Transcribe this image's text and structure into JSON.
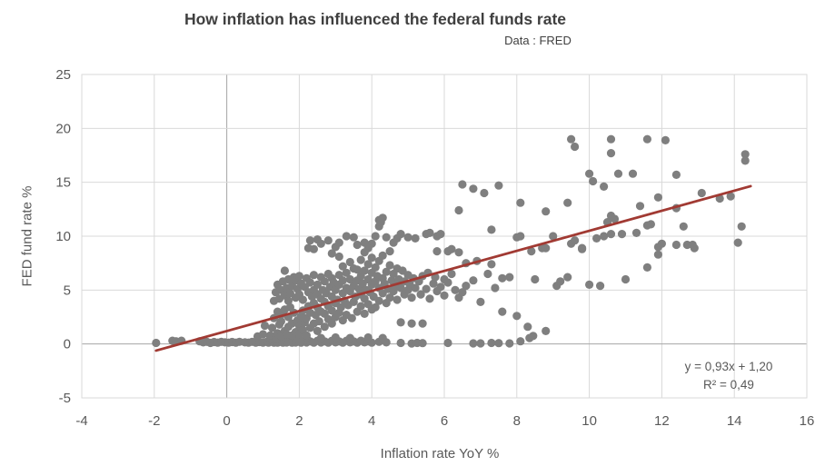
{
  "chart_data": {
    "type": "scatter",
    "title": "How inflation has influenced the federal funds rate",
    "subtitle": "Data : FRED",
    "xlabel": "Inflation rate YoY %",
    "ylabel": "FED fund rate %",
    "xlim": [
      -4,
      16
    ],
    "ylim": [
      -5,
      25
    ],
    "xticks": [
      -4,
      -2,
      0,
      2,
      4,
      6,
      8,
      10,
      12,
      14,
      16
    ],
    "yticks": [
      -5,
      0,
      5,
      10,
      15,
      20,
      25
    ],
    "grid": true,
    "legend": false,
    "marker_color": "#7F7F7F",
    "grid_color": "#D9D9D9",
    "axis_line_color": "#A6A6A6",
    "text_color": "#595959",
    "title_color": "#3F3F3F",
    "trendline": {
      "label_equation": "y = 0,93x + 1,20",
      "label_r2": "R² = 0,49",
      "slope": 0.93,
      "intercept": 1.2,
      "x_start": -1.95,
      "x_end": 14.45,
      "color": "#A13A33"
    },
    "points": [
      [
        -1.95,
        0.1
      ],
      [
        -1.5,
        0.3
      ],
      [
        -1.4,
        0.25
      ],
      [
        -1.25,
        0.3
      ],
      [
        -0.75,
        0.25
      ],
      [
        -0.65,
        0.15
      ],
      [
        -0.55,
        0.2
      ],
      [
        -0.45,
        0.1
      ],
      [
        -0.35,
        0.18
      ],
      [
        -0.25,
        0.12
      ],
      [
        -0.15,
        0.2
      ],
      [
        -0.05,
        0.15
      ],
      [
        0.05,
        0.12
      ],
      [
        0.15,
        0.18
      ],
      [
        0.25,
        0.12
      ],
      [
        0.35,
        0.2
      ],
      [
        0.5,
        0.15
      ],
      [
        0.6,
        0.12
      ],
      [
        0.7,
        0.2
      ],
      [
        0.8,
        0.12
      ],
      [
        0.9,
        0.18
      ],
      [
        1.0,
        0.12
      ],
      [
        1.1,
        0.2
      ],
      [
        1.15,
        0.12
      ],
      [
        1.2,
        0.35
      ],
      [
        1.3,
        0.12
      ],
      [
        1.35,
        0.25
      ],
      [
        1.4,
        0.12
      ],
      [
        1.5,
        0.2
      ],
      [
        1.55,
        0.12
      ],
      [
        1.6,
        0.3
      ],
      [
        1.65,
        0.14
      ],
      [
        1.7,
        0.22
      ],
      [
        1.8,
        0.12
      ],
      [
        1.85,
        0.3
      ],
      [
        1.9,
        0.14
      ],
      [
        2.0,
        0.22
      ],
      [
        2.05,
        0.12
      ],
      [
        2.1,
        0.3
      ],
      [
        2.2,
        0.14
      ],
      [
        2.3,
        0.24
      ],
      [
        2.4,
        0.12
      ],
      [
        2.5,
        0.3
      ],
      [
        2.6,
        0.14
      ],
      [
        2.7,
        0.24
      ],
      [
        2.8,
        0.12
      ],
      [
        2.9,
        0.3
      ],
      [
        3.0,
        0.15
      ],
      [
        3.1,
        0.24
      ],
      [
        3.2,
        0.12
      ],
      [
        3.3,
        0.3
      ],
      [
        3.4,
        0.15
      ],
      [
        3.5,
        0.24
      ],
      [
        3.6,
        0.12
      ],
      [
        3.7,
        0.3
      ],
      [
        3.8,
        0.15
      ],
      [
        3.9,
        0.24
      ],
      [
        4.0,
        0.12
      ],
      [
        4.2,
        0.2
      ],
      [
        4.4,
        0.15
      ],
      [
        4.8,
        0.1
      ],
      [
        5.1,
        0.05
      ],
      [
        5.25,
        0.1
      ],
      [
        5.4,
        0.08
      ],
      [
        6.1,
        0.1
      ],
      [
        6.8,
        0.06
      ],
      [
        7.0,
        0.06
      ],
      [
        7.3,
        0.1
      ],
      [
        7.5,
        0.08
      ],
      [
        7.8,
        0.06
      ],
      [
        8.1,
        0.25
      ],
      [
        8.35,
        0.55
      ],
      [
        8.45,
        0.75
      ],
      [
        0.85,
        0.7
      ],
      [
        1.0,
        0.9
      ],
      [
        1.05,
        1.7
      ],
      [
        1.2,
        0.6
      ],
      [
        1.4,
        0.55
      ],
      [
        1.6,
        0.65
      ],
      [
        1.9,
        0.55
      ],
      [
        2.2,
        0.6
      ],
      [
        2.6,
        0.55
      ],
      [
        3.0,
        0.6
      ],
      [
        3.4,
        0.55
      ],
      [
        3.9,
        0.6
      ],
      [
        4.3,
        0.55
      ],
      [
        4.8,
        2.0
      ],
      [
        5.1,
        1.9
      ],
      [
        5.4,
        1.9
      ],
      [
        1.2,
        0.8
      ],
      [
        1.25,
        1.5
      ],
      [
        1.3,
        2.4
      ],
      [
        1.3,
        4.0
      ],
      [
        1.35,
        0.6
      ],
      [
        1.35,
        4.8
      ],
      [
        1.4,
        1.0
      ],
      [
        1.4,
        3.0
      ],
      [
        1.4,
        5.5
      ],
      [
        1.45,
        1.8
      ],
      [
        1.45,
        4.2
      ],
      [
        1.5,
        0.7
      ],
      [
        1.5,
        2.1
      ],
      [
        1.5,
        5.0
      ],
      [
        1.55,
        2.8
      ],
      [
        1.55,
        5.8
      ],
      [
        1.6,
        1.2
      ],
      [
        1.6,
        3.2
      ],
      [
        1.6,
        4.5
      ],
      [
        1.6,
        6.8
      ],
      [
        1.65,
        0.9
      ],
      [
        1.65,
        5.2
      ],
      [
        1.7,
        1.6
      ],
      [
        1.7,
        2.5
      ],
      [
        1.7,
        4.0
      ],
      [
        1.7,
        6.0
      ],
      [
        1.75,
        3.4
      ],
      [
        1.75,
        4.7
      ],
      [
        1.8,
        0.8
      ],
      [
        1.8,
        1.9
      ],
      [
        1.8,
        5.4
      ],
      [
        1.85,
        2.9
      ],
      [
        1.85,
        6.2
      ],
      [
        1.9,
        1.1
      ],
      [
        1.9,
        4.3
      ],
      [
        1.9,
        5.9
      ],
      [
        1.95,
        2.2
      ],
      [
        1.95,
        5.1
      ],
      [
        2.0,
        0.9
      ],
      [
        2.0,
        1.7
      ],
      [
        2.0,
        4.6
      ],
      [
        2.0,
        6.3
      ],
      [
        2.05,
        2.6
      ],
      [
        2.05,
        5.6
      ],
      [
        2.1,
        1.3
      ],
      [
        2.1,
        3.1
      ],
      [
        2.1,
        4.1
      ],
      [
        2.15,
        2.0
      ],
      [
        2.15,
        5.3
      ],
      [
        2.2,
        0.8
      ],
      [
        2.2,
        2.4
      ],
      [
        2.2,
        6.1
      ],
      [
        2.25,
        3.5
      ],
      [
        2.25,
        4.8
      ],
      [
        2.3,
        1.5
      ],
      [
        2.3,
        2.9
      ],
      [
        2.3,
        5.7
      ],
      [
        2.3,
        9.6
      ],
      [
        2.35,
        4.4
      ],
      [
        2.4,
        1.9
      ],
      [
        2.4,
        3.8
      ],
      [
        2.4,
        5.0
      ],
      [
        2.4,
        6.4
      ],
      [
        2.45,
        2.7
      ],
      [
        2.5,
        1.2
      ],
      [
        2.5,
        3.4
      ],
      [
        2.5,
        4.6
      ],
      [
        2.5,
        5.5
      ],
      [
        2.5,
        9.7
      ],
      [
        2.55,
        2.1
      ],
      [
        2.6,
        3.0
      ],
      [
        2.6,
        4.2
      ],
      [
        2.6,
        6.2
      ],
      [
        2.6,
        9.3
      ],
      [
        2.65,
        5.0
      ],
      [
        2.7,
        1.6
      ],
      [
        2.7,
        2.8
      ],
      [
        2.7,
        3.9
      ],
      [
        2.7,
        5.8
      ],
      [
        2.75,
        4.7
      ],
      [
        2.8,
        2.3
      ],
      [
        2.8,
        3.5
      ],
      [
        2.8,
        6.5
      ],
      [
        2.8,
        9.6
      ],
      [
        2.85,
        5.3
      ],
      [
        2.9,
        1.9
      ],
      [
        2.9,
        3.1
      ],
      [
        2.9,
        4.4
      ],
      [
        2.9,
        6.1
      ],
      [
        2.95,
        5.7
      ],
      [
        3.0,
        2.5
      ],
      [
        3.0,
        3.8
      ],
      [
        3.0,
        5.0
      ],
      [
        3.0,
        9.0
      ],
      [
        3.05,
        4.1
      ],
      [
        3.1,
        2.9
      ],
      [
        3.1,
        5.5
      ],
      [
        3.1,
        6.4
      ],
      [
        3.1,
        9.4
      ],
      [
        3.15,
        3.4
      ],
      [
        3.2,
        2.2
      ],
      [
        3.2,
        4.7
      ],
      [
        3.2,
        5.9
      ],
      [
        3.2,
        7.2
      ],
      [
        2.25,
        8.9
      ],
      [
        2.4,
        8.8
      ],
      [
        2.9,
        8.4
      ],
      [
        3.1,
        8.1
      ],
      [
        3.8,
        8.5
      ],
      [
        4.0,
        9.3
      ],
      [
        4.5,
        8.6
      ],
      [
        4.6,
        9.4
      ],
      [
        3.9,
        8.9
      ],
      [
        3.25,
        4.0
      ],
      [
        3.3,
        2.7
      ],
      [
        3.3,
        5.2
      ],
      [
        3.3,
        6.6
      ],
      [
        3.3,
        10.0
      ],
      [
        3.35,
        3.6
      ],
      [
        3.4,
        4.9
      ],
      [
        3.4,
        6.0
      ],
      [
        3.4,
        7.6
      ],
      [
        3.45,
        2.4
      ],
      [
        3.5,
        3.9
      ],
      [
        3.5,
        5.4
      ],
      [
        3.5,
        7.0
      ],
      [
        3.5,
        9.9
      ],
      [
        3.55,
        4.4
      ],
      [
        3.6,
        3.0
      ],
      [
        3.6,
        5.9
      ],
      [
        3.6,
        6.9
      ],
      [
        3.6,
        9.2
      ],
      [
        3.65,
        5.1
      ],
      [
        3.7,
        3.5
      ],
      [
        3.7,
        4.6
      ],
      [
        3.7,
        6.3
      ],
      [
        3.7,
        7.8
      ],
      [
        3.75,
        5.6
      ],
      [
        3.8,
        2.8
      ],
      [
        3.8,
        4.2
      ],
      [
        3.8,
        6.8
      ],
      [
        3.8,
        9.4
      ],
      [
        3.85,
        5.0
      ],
      [
        3.9,
        3.7
      ],
      [
        3.9,
        6.0
      ],
      [
        3.9,
        7.4
      ],
      [
        3.95,
        4.8
      ],
      [
        4.0,
        3.2
      ],
      [
        4.0,
        5.5
      ],
      [
        4.0,
        6.6
      ],
      [
        4.0,
        8.0
      ],
      [
        4.05,
        4.4
      ],
      [
        4.1,
        3.4
      ],
      [
        4.1,
        5.8
      ],
      [
        4.1,
        7.1
      ],
      [
        4.1,
        10.0
      ],
      [
        4.15,
        6.3
      ],
      [
        4.2,
        4.0
      ],
      [
        4.2,
        5.2
      ],
      [
        4.2,
        7.7
      ],
      [
        4.2,
        10.9
      ],
      [
        4.2,
        11.5
      ],
      [
        4.25,
        11.3
      ],
      [
        4.3,
        4.7
      ],
      [
        4.3,
        6.1
      ],
      [
        4.3,
        8.2
      ],
      [
        4.3,
        11.7
      ],
      [
        4.35,
        5.6
      ],
      [
        4.4,
        3.8
      ],
      [
        4.4,
        6.7
      ],
      [
        4.4,
        9.9
      ],
      [
        4.45,
        5.1
      ],
      [
        4.5,
        4.3
      ],
      [
        4.5,
        7.3
      ],
      [
        4.55,
        5.9
      ],
      [
        4.6,
        4.9
      ],
      [
        4.6,
        6.5
      ],
      [
        4.65,
        5.4
      ],
      [
        4.7,
        4.1
      ],
      [
        4.7,
        7.0
      ],
      [
        4.7,
        9.8
      ],
      [
        4.75,
        6.0
      ],
      [
        4.8,
        5.2
      ],
      [
        4.8,
        10.2
      ],
      [
        4.85,
        6.8
      ],
      [
        4.9,
        4.6
      ],
      [
        4.9,
        5.8
      ],
      [
        5.0,
        5.0
      ],
      [
        5.0,
        6.4
      ],
      [
        5.0,
        9.9
      ],
      [
        5.05,
        5.5
      ],
      [
        5.1,
        4.3
      ],
      [
        5.15,
        6.1
      ],
      [
        5.2,
        5.2
      ],
      [
        5.2,
        9.8
      ],
      [
        5.3,
        5.8
      ],
      [
        5.35,
        4.6
      ],
      [
        5.4,
        6.3
      ],
      [
        5.5,
        5.1
      ],
      [
        5.5,
        10.2
      ],
      [
        5.55,
        6.6
      ],
      [
        5.6,
        4.2
      ],
      [
        5.6,
        10.3
      ],
      [
        5.7,
        5.6
      ],
      [
        5.75,
        6.2
      ],
      [
        5.8,
        4.9
      ],
      [
        5.8,
        8.6
      ],
      [
        5.8,
        10.0
      ],
      [
        5.9,
        5.3
      ],
      [
        5.9,
        10.2
      ],
      [
        6.0,
        4.5
      ],
      [
        6.0,
        6.0
      ],
      [
        6.1,
        5.7
      ],
      [
        6.1,
        8.6
      ],
      [
        6.2,
        6.5
      ],
      [
        6.2,
        8.8
      ],
      [
        6.3,
        5.0
      ],
      [
        6.4,
        4.3
      ],
      [
        6.4,
        8.5
      ],
      [
        6.5,
        4.8
      ],
      [
        6.6,
        5.4
      ],
      [
        6.8,
        5.9
      ],
      [
        7.0,
        3.9
      ],
      [
        7.6,
        3.0
      ],
      [
        8.0,
        2.6
      ],
      [
        8.3,
        1.6
      ],
      [
        8.8,
        1.2
      ],
      [
        7.2,
        6.5
      ],
      [
        7.4,
        5.2
      ],
      [
        7.6,
        6.1
      ],
      [
        7.8,
        6.2
      ],
      [
        8.5,
        6.0
      ],
      [
        9.1,
        5.4
      ],
      [
        9.2,
        5.8
      ],
      [
        9.4,
        6.2
      ],
      [
        10.0,
        5.5
      ],
      [
        10.3,
        5.4
      ],
      [
        11.0,
        6.0
      ],
      [
        11.6,
        7.1
      ],
      [
        11.9,
        8.3
      ],
      [
        6.6,
        7.5
      ],
      [
        6.9,
        7.7
      ],
      [
        7.3,
        7.4
      ],
      [
        8.0,
        9.9
      ],
      [
        8.1,
        10.0
      ],
      [
        8.4,
        8.6
      ],
      [
        8.7,
        8.9
      ],
      [
        8.8,
        8.9
      ],
      [
        9.0,
        10.0
      ],
      [
        9.5,
        9.3
      ],
      [
        9.6,
        9.6
      ],
      [
        9.8,
        8.8
      ],
      [
        9.8,
        8.9
      ],
      [
        10.2,
        9.8
      ],
      [
        10.4,
        10.0
      ],
      [
        10.6,
        10.2
      ],
      [
        10.9,
        10.2
      ],
      [
        11.3,
        10.3
      ],
      [
        11.6,
        11.0
      ],
      [
        11.7,
        11.1
      ],
      [
        11.9,
        9.0
      ],
      [
        12.0,
        9.3
      ],
      [
        12.4,
        9.2
      ],
      [
        12.6,
        10.9
      ],
      [
        12.7,
        9.2
      ],
      [
        12.85,
        9.2
      ],
      [
        12.9,
        8.9
      ],
      [
        14.1,
        9.4
      ],
      [
        14.2,
        10.9
      ],
      [
        10.5,
        11.3
      ],
      [
        10.6,
        11.9
      ],
      [
        10.7,
        11.6
      ],
      [
        11.4,
        12.8
      ],
      [
        11.9,
        13.6
      ],
      [
        12.4,
        12.6
      ],
      [
        13.1,
        14.0
      ],
      [
        13.6,
        13.5
      ],
      [
        13.9,
        13.7
      ],
      [
        12.4,
        15.7
      ],
      [
        11.2,
        15.8
      ],
      [
        10.8,
        15.8
      ],
      [
        10.0,
        15.8
      ],
      [
        10.1,
        15.1
      ],
      [
        10.4,
        14.6
      ],
      [
        9.5,
        19.0
      ],
      [
        9.6,
        18.3
      ],
      [
        10.6,
        19.0
      ],
      [
        10.6,
        17.7
      ],
      [
        11.6,
        19.0
      ],
      [
        12.1,
        18.9
      ],
      [
        14.3,
        17.6
      ],
      [
        14.3,
        17.0
      ],
      [
        6.4,
        12.4
      ],
      [
        6.5,
        14.8
      ],
      [
        6.8,
        14.4
      ],
      [
        7.1,
        14.0
      ],
      [
        7.5,
        14.7
      ],
      [
        7.3,
        10.6
      ],
      [
        8.1,
        13.1
      ],
      [
        8.8,
        12.3
      ],
      [
        9.4,
        13.1
      ]
    ]
  }
}
